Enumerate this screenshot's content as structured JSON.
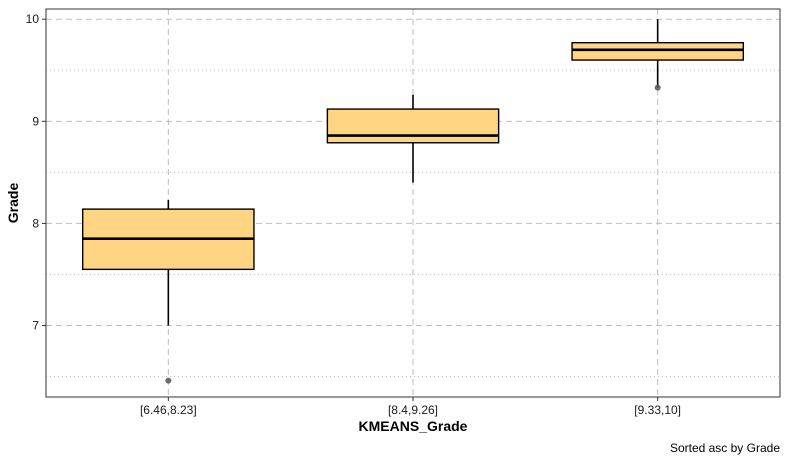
{
  "chart_data": {
    "type": "box",
    "xlabel": "KMEANS_Grade",
    "ylabel": "Grade",
    "caption": "Sorted asc by  Grade",
    "ylim": [
      6.3,
      10.1
    ],
    "y_major_ticks": [
      7,
      8,
      9,
      10
    ],
    "y_minor_gridlines": [
      6.5,
      7.5,
      8.5,
      9.5
    ],
    "grid": "major dashed, minor dotted",
    "box_fill": "#FFD583",
    "colors": {
      "box_fill": "#FFD583",
      "box_stroke": "#000000",
      "outlier": "#555555",
      "grid": "#BEBEBE"
    },
    "categories": [
      "[6.46,8.23]",
      "[8.4,9.26]",
      "[9.33,10]"
    ],
    "boxes": [
      {
        "category": "[6.46,8.23]",
        "whisker_low": 7.0,
        "q1": 7.55,
        "median": 7.85,
        "q3": 8.14,
        "whisker_high": 8.23,
        "outliers": [
          6.46
        ]
      },
      {
        "category": "[8.4,9.26]",
        "whisker_low": 8.4,
        "q1": 8.79,
        "median": 8.86,
        "q3": 9.12,
        "whisker_high": 9.26,
        "outliers": []
      },
      {
        "category": "[9.33,10]",
        "whisker_low": 9.33,
        "q1": 9.6,
        "median": 9.7,
        "q3": 9.77,
        "whisker_high": 10.0,
        "outliers": [
          9.33
        ]
      }
    ]
  }
}
